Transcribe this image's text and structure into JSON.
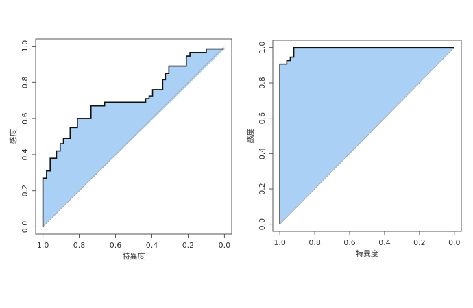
{
  "chart_data": [
    {
      "type": "roc",
      "x_label": "特異度",
      "y_label": "感度",
      "x": [
        1,
        1,
        0.98,
        0.98,
        0.96,
        0.96,
        0.925,
        0.925,
        0.905,
        0.905,
        0.887,
        0.887,
        0.85,
        0.85,
        0.81,
        0.81,
        0.735,
        0.735,
        0.66,
        0.66,
        0.434,
        0.434,
        0.415,
        0.415,
        0.396,
        0.396,
        0.34,
        0.34,
        0.325,
        0.325,
        0.306,
        0.306,
        0.21,
        0.21,
        0.19,
        0.19,
        0.1,
        0.1,
        0
      ],
      "values": [
        0,
        0.27,
        0.27,
        0.31,
        0.31,
        0.38,
        0.38,
        0.42,
        0.42,
        0.46,
        0.46,
        0.49,
        0.49,
        0.55,
        0.55,
        0.6,
        0.6,
        0.67,
        0.67,
        0.69,
        0.69,
        0.71,
        0.71,
        0.725,
        0.725,
        0.76,
        0.76,
        0.815,
        0.815,
        0.85,
        0.85,
        0.89,
        0.89,
        0.945,
        0.945,
        0.965,
        0.965,
        0.985,
        0.985
      ],
      "color": "#111111",
      "fill": "#aad0f5",
      "xlim": [
        1.04,
        -0.04
      ],
      "ylim": [
        -0.04,
        1.04
      ],
      "xticks": [
        {
          "value": 1,
          "label": "1.0"
        },
        0.8,
        0.6,
        0.4,
        0.2,
        {
          "value": 0,
          "label": "0.0"
        }
      ],
      "yticks": [
        {
          "value": 0,
          "label": "0.0"
        },
        0.2,
        0.4,
        0.6,
        0.8,
        {
          "value": 1,
          "label": "1.0"
        }
      ]
    },
    {
      "type": "roc",
      "x_label": "特異度",
      "y_label": "感度",
      "x": [
        1,
        1,
        0.96,
        0.96,
        0.94,
        0.94,
        0.92,
        0.92,
        0
      ],
      "values": [
        0,
        0.906,
        0.906,
        0.926,
        0.926,
        0.945,
        0.945,
        1,
        1
      ],
      "color": "#111111",
      "fill": "#aad0f5",
      "xlim": [
        1.04,
        -0.04
      ],
      "ylim": [
        -0.04,
        1.04
      ],
      "xticks": [
        {
          "value": 1,
          "label": "1.0"
        },
        0.8,
        0.6,
        0.4,
        0.2,
        {
          "value": 0,
          "label": "0.0"
        }
      ],
      "yticks": [
        {
          "value": 0,
          "label": "0.0"
        },
        0.2,
        0.4,
        0.6,
        0.8,
        {
          "value": 1,
          "label": "1.0"
        }
      ]
    }
  ]
}
